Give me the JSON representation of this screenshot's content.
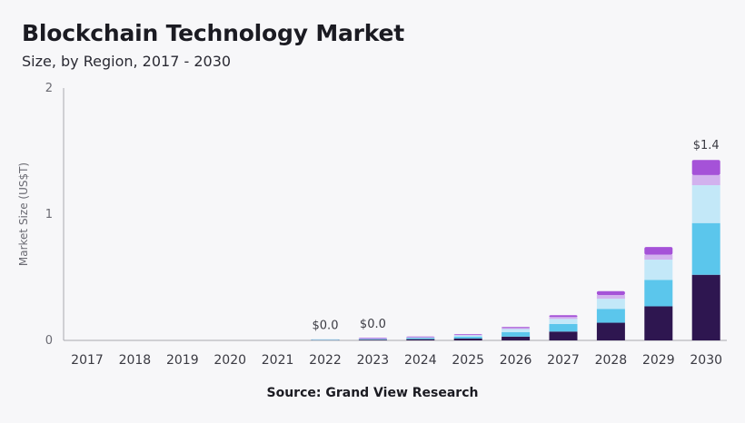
{
  "header": {
    "title": "Blockchain Technology Market",
    "subtitle": "Size, by Region, 2017 - 2030"
  },
  "footer": {
    "source": "Source: Grand View Research"
  },
  "colors": {
    "axis": "#a8a8b0",
    "tick_text": "#6b6b73",
    "label_text": "#3a3a42",
    "segments": [
      "#2e1650",
      "#5bc6ec",
      "#c3e8f8",
      "#d2b2ee",
      "#a552d8"
    ]
  },
  "chart_data": {
    "type": "bar",
    "stacked": true,
    "title": "Blockchain Technology Market",
    "subtitle": "Size, by Region, 2017 - 2030",
    "xlabel": "",
    "ylabel": "Market Size (US$T)",
    "ylim": [
      0,
      2
    ],
    "yticks": [
      0,
      1,
      2
    ],
    "grid": false,
    "legend": "none",
    "categories": [
      "2017",
      "2018",
      "2019",
      "2020",
      "2021",
      "2022",
      "2023",
      "2024",
      "2025",
      "2026",
      "2027",
      "2028",
      "2029",
      "2030"
    ],
    "series": [
      {
        "values": [
          0,
          0,
          0,
          0,
          0,
          0.002,
          0.006,
          0.01,
          0.015,
          0.03,
          0.07,
          0.14,
          0.27,
          0.52
        ]
      },
      {
        "values": [
          0,
          0,
          0,
          0,
          0,
          0.001,
          0.004,
          0.008,
          0.015,
          0.035,
          0.06,
          0.11,
          0.21,
          0.41
        ]
      },
      {
        "values": [
          0,
          0,
          0,
          0,
          0,
          0.001,
          0.003,
          0.005,
          0.01,
          0.025,
          0.04,
          0.08,
          0.16,
          0.3
        ]
      },
      {
        "values": [
          0,
          0,
          0,
          0,
          0,
          0.0,
          0.001,
          0.002,
          0.004,
          0.008,
          0.015,
          0.03,
          0.04,
          0.08
        ]
      },
      {
        "values": [
          0,
          0,
          0,
          0,
          0,
          0.0,
          0.001,
          0.002,
          0.004,
          0.008,
          0.015,
          0.03,
          0.06,
          0.12
        ]
      }
    ],
    "data_labels": [
      {
        "category": "2022",
        "text": "$0.0"
      },
      {
        "category": "2023",
        "text": "$0.0"
      },
      {
        "category": "2030",
        "text": "$1.4"
      }
    ]
  }
}
